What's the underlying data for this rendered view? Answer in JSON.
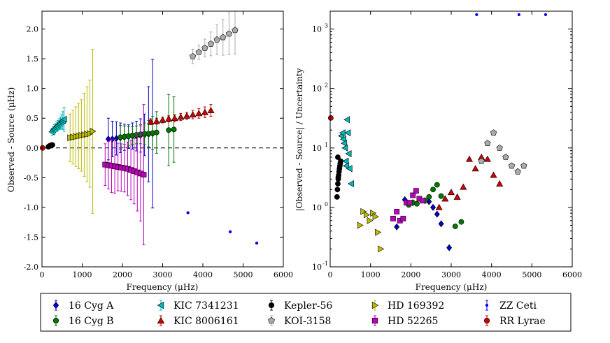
{
  "chart_data": [
    {
      "type": "scatter",
      "title": "",
      "xlabel": "Frequency (μHz)",
      "ylabel": "Observed - Source (μHz)",
      "xlim": [
        0,
        6000
      ],
      "ylim": [
        -2.0,
        2.3
      ],
      "x_ticks": [
        "0",
        "1000",
        "2000",
        "3000",
        "4000",
        "5000",
        "6000"
      ],
      "y_ticks": [
        "-2.0",
        "-1.5",
        "-1.0",
        "-0.5",
        "0.0",
        "0.5",
        "1.0",
        "1.5",
        "2.0"
      ],
      "y_tick_values": [
        -2.0,
        -1.5,
        -1.0,
        -0.5,
        0.0,
        0.5,
        1.0,
        1.5,
        2.0
      ],
      "zero_line": true,
      "grid": false,
      "series": [
        {
          "name": "16 Cyg A",
          "color": "#0000cc",
          "marker": "diamond",
          "x": [
            1650,
            1750,
            1850,
            1950,
            2050,
            2150,
            2250,
            2350,
            2450,
            2550,
            2650,
            2750
          ],
          "y": [
            0.15,
            0.15,
            0.16,
            0.17,
            0.18,
            0.19,
            0.2,
            0.2,
            0.21,
            0.22,
            0.23,
            0.24
          ],
          "err": [
            0.35,
            0.3,
            0.28,
            0.25,
            0.22,
            0.2,
            0.22,
            0.25,
            0.28,
            0.35,
            0.8,
            1.25
          ]
        },
        {
          "name": "16 Cyg B",
          "color": "#007700",
          "marker": "circle",
          "x": [
            1950,
            2050,
            2150,
            2250,
            2350,
            2450,
            2550,
            2650,
            2750,
            2850,
            3150,
            3280
          ],
          "y": [
            0.18,
            0.19,
            0.2,
            0.21,
            0.22,
            0.23,
            0.24,
            0.24,
            0.25,
            0.26,
            0.3,
            0.31
          ],
          "err": [
            0.2,
            0.18,
            0.16,
            0.15,
            0.15,
            0.16,
            0.18,
            0.22,
            0.28,
            0.35,
            0.6,
            0.55
          ]
        },
        {
          "name": "KIC 7341231",
          "color": "#00b8b8",
          "marker": "triangle-left",
          "x": [
            250,
            280,
            310,
            340,
            370,
            400,
            430,
            460,
            490,
            520,
            550
          ],
          "y": [
            0.27,
            0.3,
            0.32,
            0.34,
            0.36,
            0.38,
            0.4,
            0.42,
            0.44,
            0.46,
            0.48
          ],
          "err": [
            0.06,
            0.06,
            0.07,
            0.07,
            0.08,
            0.08,
            0.09,
            0.1,
            0.12,
            0.15,
            0.2
          ]
        },
        {
          "name": "KIC 8006161",
          "color": "#cc0000",
          "marker": "triangle-up",
          "x": [
            2700,
            2850,
            3000,
            3150,
            3300,
            3450,
            3600,
            3750,
            3900,
            4050,
            4200
          ],
          "y": [
            0.44,
            0.45,
            0.47,
            0.49,
            0.5,
            0.52,
            0.54,
            0.56,
            0.58,
            0.6,
            0.63
          ],
          "err": [
            0.05,
            0.05,
            0.05,
            0.05,
            0.06,
            0.06,
            0.06,
            0.07,
            0.08,
            0.09,
            0.1
          ]
        },
        {
          "name": "Kepler-56",
          "color": "#000000",
          "marker": "circle",
          "x": [
            160,
            180,
            200,
            220,
            240,
            260
          ],
          "y": [
            0.02,
            0.03,
            0.04,
            0.04,
            0.05,
            0.05
          ],
          "err": [
            0.02,
            0.02,
            0.02,
            0.02,
            0.02,
            0.02
          ]
        },
        {
          "name": "KOI-3158",
          "color": "#aaaaaa",
          "marker": "pentagon",
          "x": [
            3750,
            3900,
            4050,
            4200,
            4350,
            4500,
            4650,
            4800
          ],
          "y": [
            1.54,
            1.61,
            1.68,
            1.75,
            1.82,
            1.86,
            1.92,
            1.98
          ],
          "err": [
            0.12,
            0.12,
            0.15,
            0.2,
            0.25,
            0.3,
            0.35,
            0.4
          ]
        },
        {
          "name": "HD 169392",
          "color": "#bbbb00",
          "marker": "triangle-right",
          "x": [
            700,
            770,
            840,
            910,
            980,
            1050,
            1120,
            1190,
            1260
          ],
          "y": [
            0.17,
            0.18,
            0.19,
            0.2,
            0.21,
            0.22,
            0.23,
            0.24,
            0.28
          ],
          "err": [
            0.4,
            0.45,
            0.5,
            0.55,
            0.6,
            0.7,
            0.8,
            0.9,
            1.38
          ]
        },
        {
          "name": "HD 52265",
          "color": "#bb00bb",
          "marker": "square",
          "x": [
            1570,
            1650,
            1730,
            1810,
            1890,
            1970,
            2050,
            2130,
            2210,
            2290,
            2370,
            2450,
            2530
          ],
          "y": [
            -0.28,
            -0.29,
            -0.3,
            -0.31,
            -0.32,
            -0.33,
            -0.34,
            -0.35,
            -0.37,
            -0.39,
            -0.41,
            -0.43,
            -0.45
          ],
          "err": [
            0.35,
            0.4,
            0.45,
            0.45,
            0.4,
            0.4,
            0.4,
            0.45,
            0.5,
            0.55,
            0.65,
            0.8,
            1.18
          ]
        },
        {
          "name": "ZZ Ceti",
          "color": "#0000ee",
          "marker": "dot",
          "x": [
            3630,
            4680,
            5340
          ],
          "y": [
            -1.09,
            -1.41,
            -1.6
          ],
          "err": [
            0.01,
            0.01,
            0.01
          ]
        },
        {
          "name": "RR Lyrae",
          "color": "#cc0000",
          "marker": "circle",
          "x": [
            15
          ],
          "y": [
            0.0
          ],
          "err": [
            0.0
          ]
        }
      ]
    },
    {
      "type": "scatter",
      "title": "",
      "xlabel": "Frequency (μHz)",
      "ylabel": "|Observed - Source| / Uncertainty",
      "xlim": [
        0,
        6000
      ],
      "ylim": [
        0.1,
        2000
      ],
      "yscale": "log",
      "x_ticks": [
        "0",
        "1000",
        "2000",
        "3000",
        "4000",
        "5000",
        "6000"
      ],
      "y_ticks": [
        "10",
        "10",
        "10",
        "10",
        "10"
      ],
      "y_tick_exponents": [
        "-1",
        "0",
        "1",
        "2",
        "3"
      ],
      "y_tick_values": [
        0.1,
        1,
        10,
        100,
        1000
      ],
      "grid": false,
      "series": [
        {
          "name": "16 Cyg A",
          "color": "#0000cc",
          "marker": "diamond",
          "x": [
            1650,
            1850,
            1950,
            2050,
            2350,
            2450,
            2550,
            2650,
            2750,
            2950
          ],
          "y": [
            0.47,
            1.35,
            1.15,
            1.2,
            1.3,
            1.25,
            1.0,
            0.77,
            0.53,
            0.21
          ]
        },
        {
          "name": "16 Cyg B",
          "color": "#007700",
          "marker": "circle",
          "x": [
            1950,
            2050,
            2150,
            2350,
            2450,
            2550,
            2650,
            2750,
            3100,
            3250
          ],
          "y": [
            1.1,
            1.2,
            1.15,
            1.3,
            1.5,
            2.0,
            2.4,
            1.55,
            0.48,
            0.57
          ]
        },
        {
          "name": "KIC 7341231",
          "color": "#00b8b8",
          "marker": "triangle-left",
          "x": [
            280,
            310,
            330,
            350,
            370,
            390,
            400,
            420,
            440,
            460,
            480,
            520
          ],
          "y": [
            16,
            18,
            14,
            12,
            10,
            6,
            5,
            30,
            18,
            8,
            4.5,
            2.5
          ]
        },
        {
          "name": "KIC 8006161",
          "color": "#cc0000",
          "marker": "triangle-up",
          "x": [
            2700,
            2850,
            3000,
            3150,
            3300,
            3450,
            3600,
            3750,
            3900,
            4050,
            4200
          ],
          "y": [
            1.0,
            1.4,
            1.8,
            1.5,
            2.2,
            6.5,
            4.5,
            7.0,
            6.5,
            3.5,
            2.5
          ]
        },
        {
          "name": "Kepler-56",
          "color": "#000000",
          "marker": "circle",
          "x": [
            170,
            180,
            190,
            200,
            210,
            220,
            230,
            240,
            250,
            260,
            190,
            200
          ],
          "y": [
            1.5,
            2.0,
            2.5,
            3.0,
            3.5,
            4.0,
            4.5,
            5.0,
            5.5,
            6.0,
            7.0,
            3.2
          ]
        },
        {
          "name": "KOI-3158",
          "color": "#aaaaaa",
          "marker": "pentagon",
          "x": [
            3750,
            3900,
            4050,
            4200,
            4350,
            4500,
            4650,
            4800
          ],
          "y": [
            6,
            12,
            18,
            10,
            7,
            5,
            4,
            5
          ]
        },
        {
          "name": "HD 169392",
          "color": "#bbbb00",
          "marker": "triangle-right",
          "x": [
            740,
            820,
            900,
            980,
            1060,
            1120,
            1180,
            1250
          ],
          "y": [
            0.5,
            0.85,
            0.75,
            0.6,
            0.8,
            0.7,
            0.38,
            0.2
          ]
        },
        {
          "name": "HD 52265",
          "color": "#bb00bb",
          "marker": "square",
          "x": [
            1560,
            1650,
            1730,
            1810,
            1890,
            1970,
            2050,
            2130,
            2210,
            2290
          ],
          "y": [
            0.65,
            0.85,
            0.6,
            0.65,
            1.2,
            1.2,
            1.6,
            1.9,
            1.4,
            1.3
          ]
        },
        {
          "name": "ZZ Ceti",
          "color": "#0000ee",
          "marker": "dot",
          "x": [
            3630,
            4680,
            5340
          ],
          "y": [
            1750,
            1750,
            1750
          ]
        },
        {
          "name": "RR Lyrae",
          "color": "#cc0000",
          "marker": "circle",
          "x": [
            15
          ],
          "y": [
            32
          ]
        }
      ]
    }
  ],
  "legend": {
    "placement": "bottom",
    "entries": [
      {
        "label": "16 Cyg A",
        "color": "#0000cc",
        "marker": "diamond"
      },
      {
        "label": "KIC 7341231",
        "color": "#00b8b8",
        "marker": "triangle-left"
      },
      {
        "label": "Kepler-56",
        "color": "#000000",
        "marker": "circle"
      },
      {
        "label": "HD 169392",
        "color": "#bbbb00",
        "marker": "triangle-right"
      },
      {
        "label": "ZZ Ceti",
        "color": "#0000ee",
        "marker": "dot"
      },
      {
        "label": "16 Cyg B",
        "color": "#007700",
        "marker": "circle"
      },
      {
        "label": "KIC 8006161",
        "color": "#cc0000",
        "marker": "triangle-up"
      },
      {
        "label": "KOI-3158",
        "color": "#aaaaaa",
        "marker": "pentagon"
      },
      {
        "label": "HD 52265",
        "color": "#bb00bb",
        "marker": "square"
      },
      {
        "label": "RR Lyrae",
        "color": "#cc0000",
        "marker": "circle"
      }
    ]
  }
}
